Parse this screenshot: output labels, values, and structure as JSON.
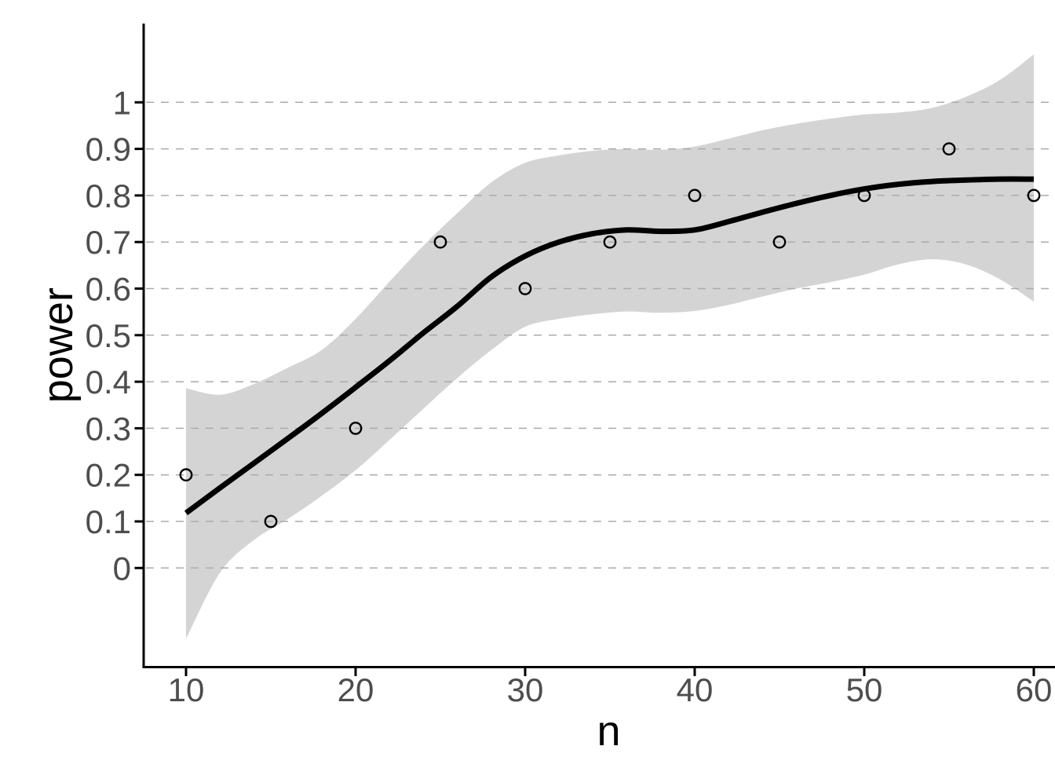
{
  "chart_data": {
    "type": "scatter",
    "title": "",
    "xlabel": "n",
    "ylabel": "power",
    "x_domain": [
      10,
      60
    ],
    "y_domain": [
      0,
      1
    ],
    "x_ticks": [
      10,
      20,
      30,
      40,
      50,
      60
    ],
    "x_tick_labels": [
      "10",
      "20",
      "30",
      "40",
      "50",
      "60"
    ],
    "y_ticks": [
      0,
      0.1,
      0.2,
      0.3,
      0.4,
      0.5,
      0.6,
      0.7,
      0.8,
      0.9,
      1
    ],
    "y_tick_labels": [
      "0",
      "0.1",
      "0.2",
      "0.3",
      "0.4",
      "0.5",
      "0.6",
      "0.7",
      "0.8",
      "0.9",
      "1"
    ],
    "grid": {
      "horizontal": true,
      "vertical": false,
      "style": "dashed"
    },
    "legend": "none",
    "points": {
      "marker": "open-circle",
      "n": [
        10,
        15,
        20,
        25,
        30,
        35,
        40,
        45,
        50,
        55,
        60
      ],
      "power": [
        0.2,
        0.1,
        0.3,
        0.7,
        0.6,
        0.7,
        0.8,
        0.7,
        0.8,
        0.9,
        0.8
      ]
    },
    "smooth": {
      "method": "loess-style smoother with confidence band",
      "n": [
        10,
        12,
        14,
        16,
        18,
        20,
        22,
        24,
        26,
        28,
        30,
        32,
        34,
        36,
        38,
        40,
        42,
        44,
        46,
        48,
        50,
        52,
        54,
        56,
        58,
        60
      ],
      "fit": [
        0.118,
        0.172,
        0.225,
        0.278,
        0.332,
        0.388,
        0.445,
        0.505,
        0.562,
        0.625,
        0.67,
        0.7,
        0.718,
        0.726,
        0.723,
        0.726,
        0.744,
        0.764,
        0.783,
        0.8,
        0.814,
        0.824,
        0.83,
        0.833,
        0.835,
        0.835
      ],
      "ci_upper": [
        0.386,
        0.372,
        0.395,
        0.43,
        0.468,
        0.535,
        0.615,
        0.692,
        0.762,
        0.828,
        0.87,
        0.886,
        0.896,
        0.9,
        0.898,
        0.905,
        0.922,
        0.94,
        0.954,
        0.965,
        0.974,
        0.978,
        0.988,
        1.012,
        1.048,
        1.103
      ],
      "ci_lower": [
        -0.152,
        -0.01,
        0.06,
        0.105,
        0.155,
        0.21,
        0.275,
        0.342,
        0.408,
        0.468,
        0.518,
        0.535,
        0.545,
        0.551,
        0.548,
        0.552,
        0.565,
        0.583,
        0.6,
        0.614,
        0.63,
        0.652,
        0.663,
        0.652,
        0.62,
        0.572
      ]
    },
    "colors": {
      "background": "#FFFFFF",
      "band": "#D4D4D4",
      "grid": "#ABABAB",
      "line": "#000000",
      "point_stroke": "#000000",
      "axis": "#000000",
      "tick_text": "#4D4D4D",
      "title_text": "#000000"
    }
  }
}
